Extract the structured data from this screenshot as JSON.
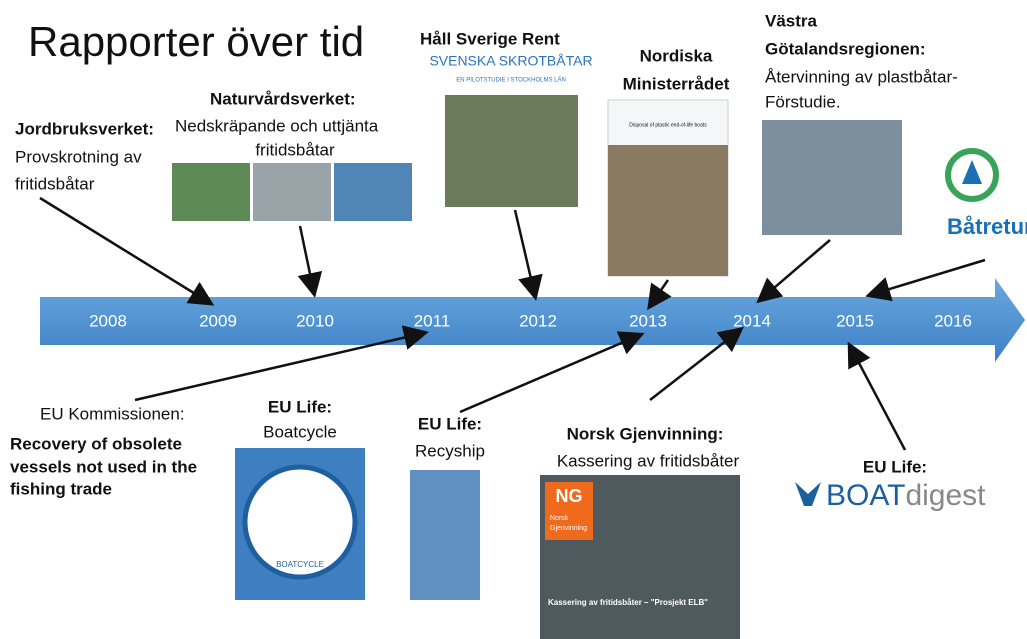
{
  "title": "Rapporter över tid",
  "years": [
    "2008",
    "2009",
    "2010",
    "2011",
    "2012",
    "2013",
    "2014",
    "2015",
    "2016"
  ],
  "reports_top": [
    {
      "org": "Jordbruksverket:",
      "lines": [
        "Provskrotning av",
        "fritidsbåtar"
      ]
    },
    {
      "org": "Naturvårdsverket:",
      "lines": [
        "Nedskräpande och uttjänta",
        "fritidsbåtar"
      ]
    },
    {
      "org": "Håll Sverige Rent",
      "lines": [
        "SVENSKA SKROTBÅTAR",
        "EN PILOTSTUDIE I STOCKHOLMS LÄN"
      ]
    },
    {
      "org": [
        "Nordiska",
        "Ministerrådet"
      ],
      "lines": [
        "Disposal of plastic end-of-life boats"
      ]
    },
    {
      "org": [
        "Västra",
        "Götalandsregionen:"
      ],
      "lines": [
        "Återvinning av plastbåtar-",
        "Förstudie."
      ]
    },
    {
      "org": "Båtretur"
    }
  ],
  "reports_bottom": [
    {
      "org": "EU Kommissionen:",
      "lines": [
        "Recovery of obsolete",
        "vessels not used in the",
        "fishing trade"
      ]
    },
    {
      "org": "EU Life:",
      "lines": [
        "Boatcycle"
      ],
      "logo": "BOATCYCLE"
    },
    {
      "org": "EU Life:",
      "lines": [
        "Recyship"
      ]
    },
    {
      "org": "Norsk Gjenvinning:",
      "lines": [
        "Kassering av fritidsbåter"
      ],
      "cover": [
        "NG",
        "Norsk",
        "Gjenvinning",
        "Kassering av fritidsbåter – \"Prosjekt ELB\""
      ]
    },
    {
      "org": "EU Life:",
      "logo": [
        "BOAT",
        "digest"
      ]
    }
  ]
}
